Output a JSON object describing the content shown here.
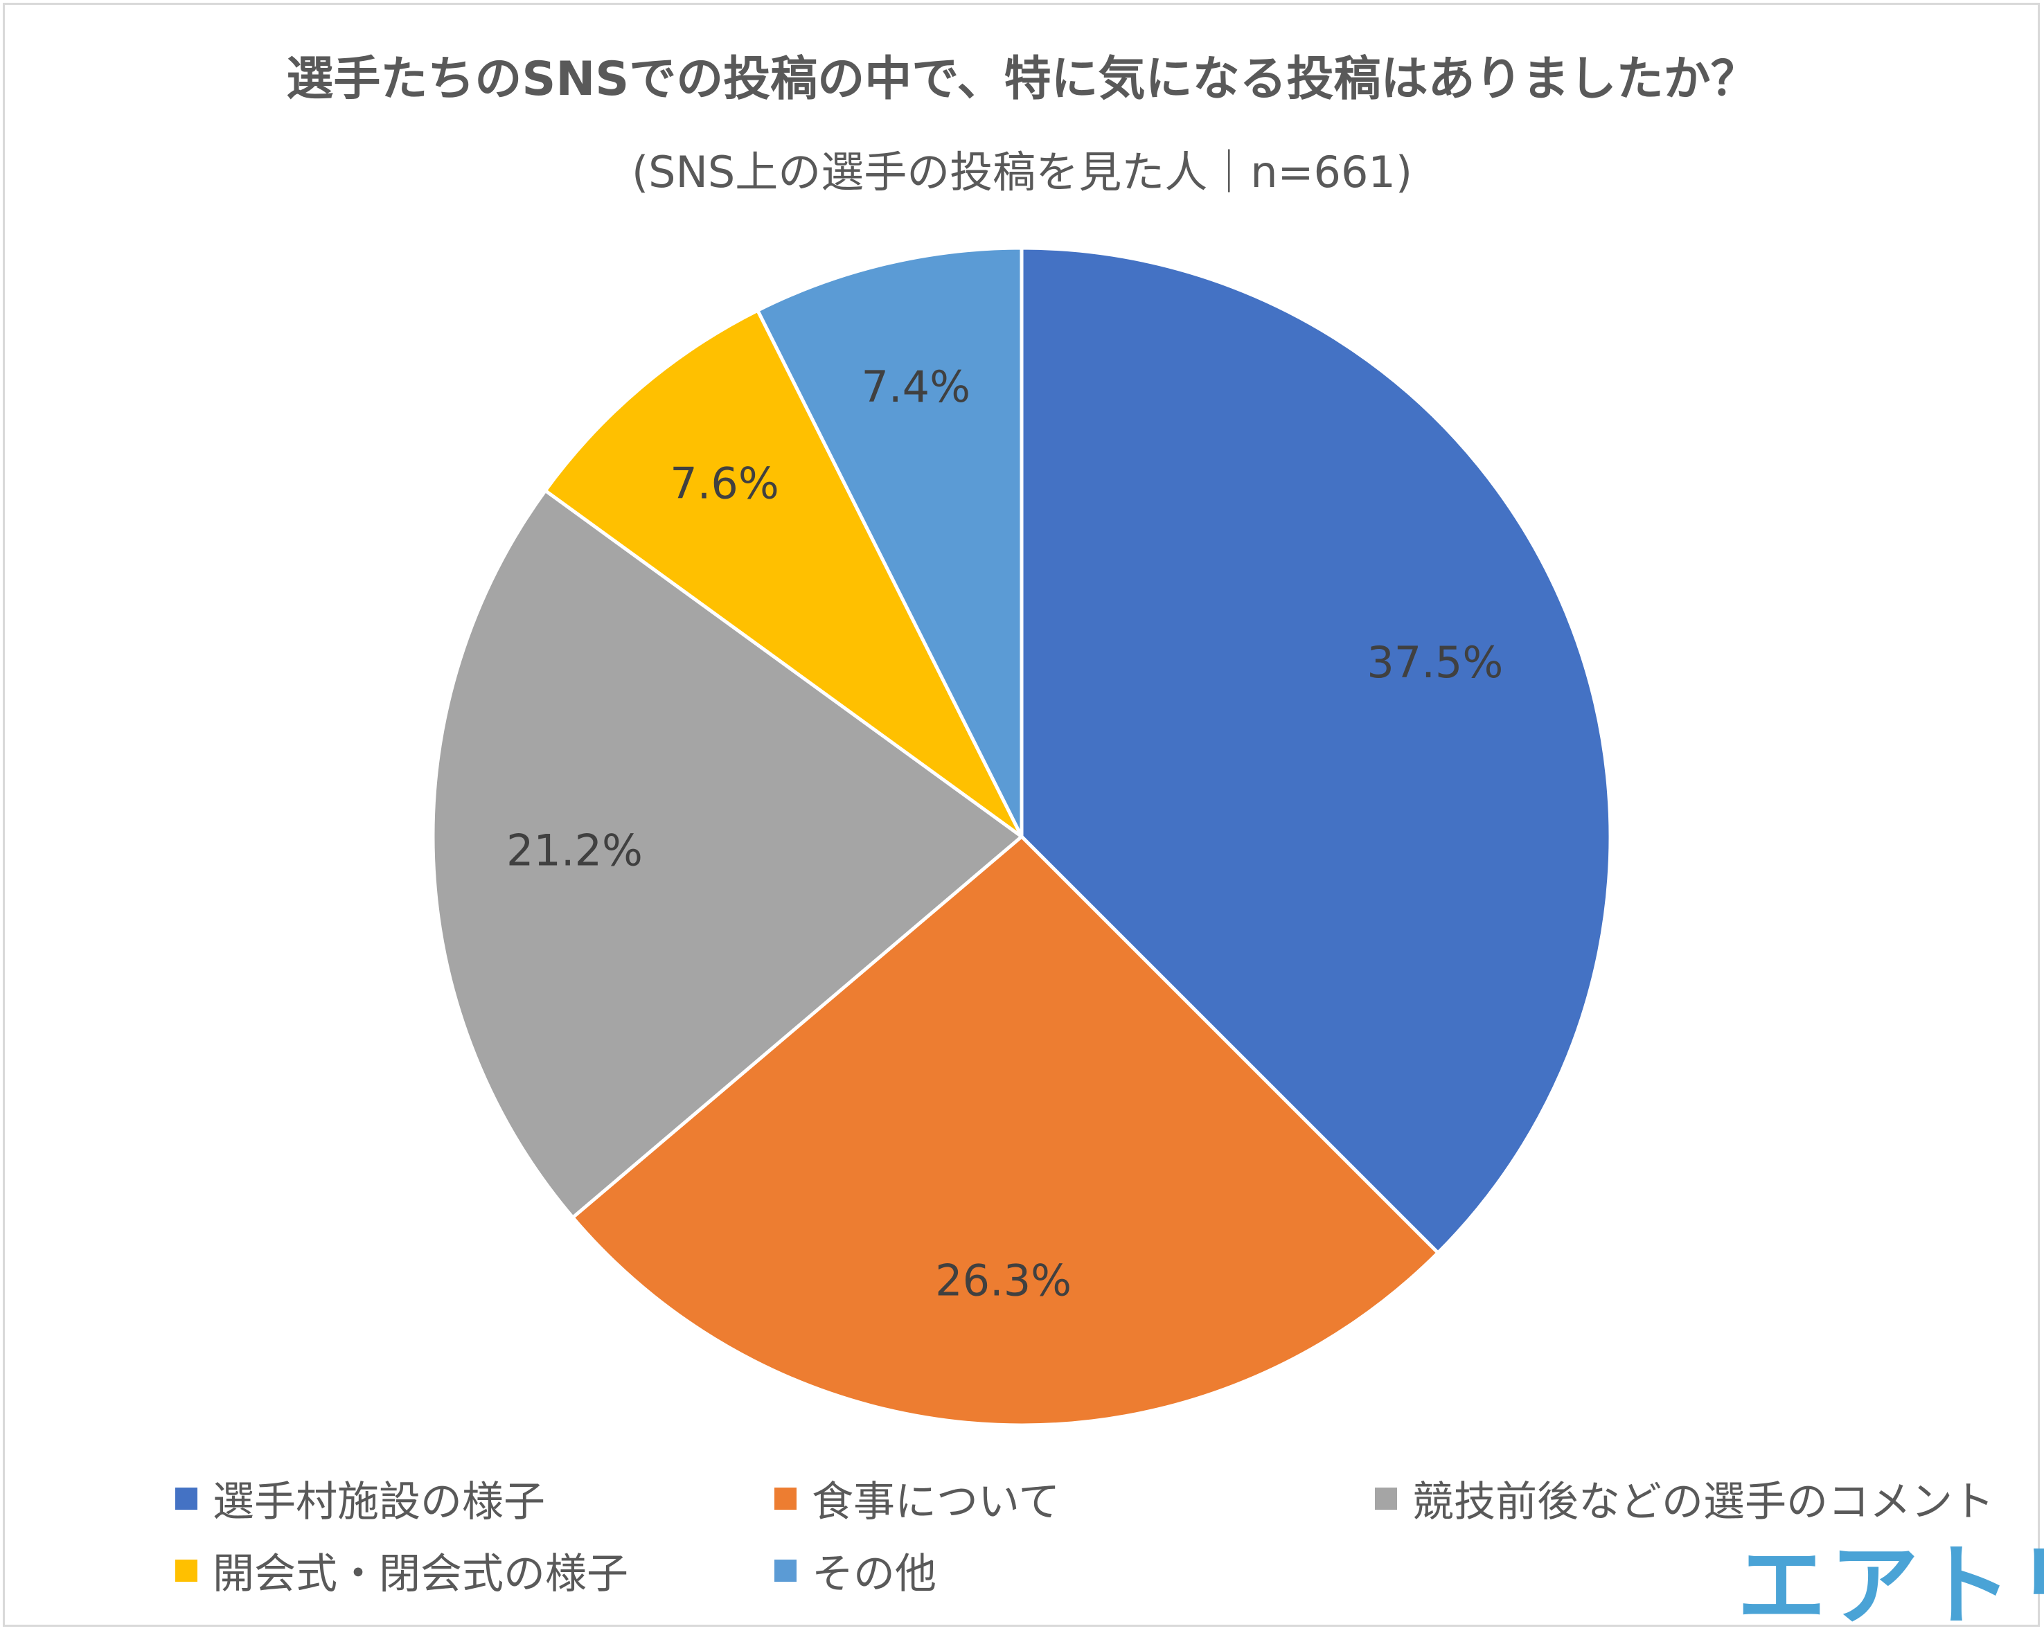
{
  "chart_data": {
    "type": "pie",
    "title": "選手たちのSNSでの投稿の中で、特に気になる投稿はありましたか？",
    "subtitle": "(SNS上の選手の投稿を見た人｜n=661)",
    "categories": [
      "選手村施設の様子",
      "食事について",
      "競技前後などの選手のコメント",
      "開会式・閉会式の様子",
      "その他"
    ],
    "values": [
      37.5,
      26.3,
      21.2,
      7.6,
      7.4
    ],
    "labels": [
      "37.5%",
      "26.3%",
      "21.2%",
      "7.6%",
      "7.4%"
    ],
    "colors": [
      "#4472c4",
      "#ed7d31",
      "#a5a5a5",
      "#ffc000",
      "#5b9bd5"
    ],
    "legend_position": "bottom"
  },
  "brand": {
    "logo_text": "エアトリ",
    "logo_color": "#4aa3d6"
  }
}
